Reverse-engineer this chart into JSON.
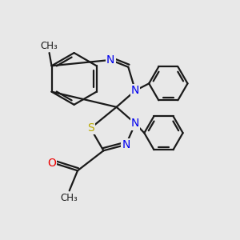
{
  "background_color": "#e8e8e8",
  "bond_color": "#1a1a1a",
  "n_color": "#0000ee",
  "s_color": "#bbaa00",
  "o_color": "#ee0000",
  "line_width": 1.6,
  "figsize": [
    3.0,
    3.0
  ],
  "dpi": 100,
  "xlim": [
    0,
    10
  ],
  "ylim": [
    0,
    10
  ]
}
